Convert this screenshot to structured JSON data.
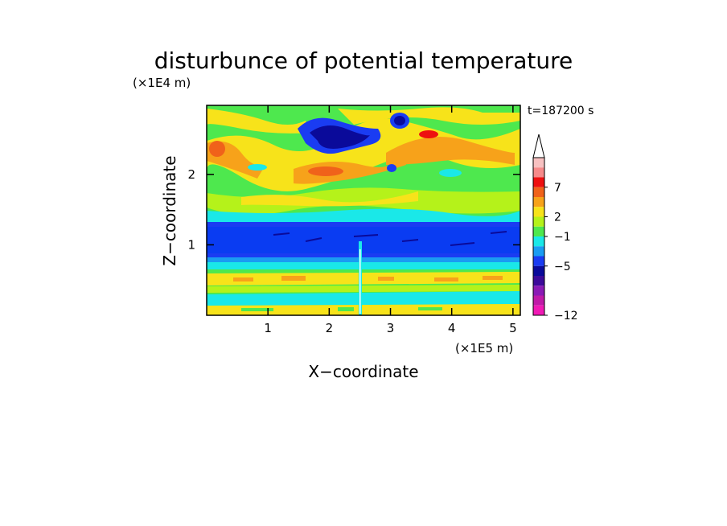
{
  "chart_data": {
    "type": "heatmap",
    "title": "disturbunce of potential temperature",
    "xlabel": "X−coordinate",
    "ylabel": "Z−coordinate",
    "x_scale_note": "(×1E5 m)",
    "y_scale_note": "(×1E4 m)",
    "time_label": "t=187200 s",
    "xlim": [
      0,
      5.12
    ],
    "ylim": [
      0,
      2.98
    ],
    "x_ticks": [
      "1",
      "2",
      "3",
      "4",
      "5"
    ],
    "y_ticks": [
      "1",
      "2"
    ],
    "colorbar": {
      "tick_labels": [
        "7",
        "2",
        "−1",
        "−5",
        "−12"
      ],
      "levels_top_to_bottom": [
        "#ffffff",
        "#f7c1c1",
        "#f68a8a",
        "#ee1010",
        "#f0621a",
        "#f7a21a",
        "#f7e31a",
        "#b5f21a",
        "#4ee84e",
        "#1ae8e8",
        "#1a9cf2",
        "#1a3cf2",
        "#0a0a9a",
        "#3c0a9a",
        "#8a1ab5",
        "#c01aa8",
        "#f01ab5"
      ]
    },
    "regions": [
      {
        "name": "upper",
        "z_range": [
          1.4,
          2.98
        ],
        "values": "mixed",
        "palette": [
          "yellow",
          "orange",
          "green",
          "light-green",
          "cyan"
        ]
      },
      {
        "name": "blue-band",
        "z_range": [
          0.72,
          1.35
        ],
        "values": "negative",
        "palette": [
          "blue",
          "dark-blue"
        ]
      },
      {
        "name": "lower",
        "z_range": [
          0,
          0.72
        ],
        "values": "mixed",
        "palette": [
          "green",
          "yellow",
          "cyan",
          "orange"
        ]
      }
    ]
  }
}
